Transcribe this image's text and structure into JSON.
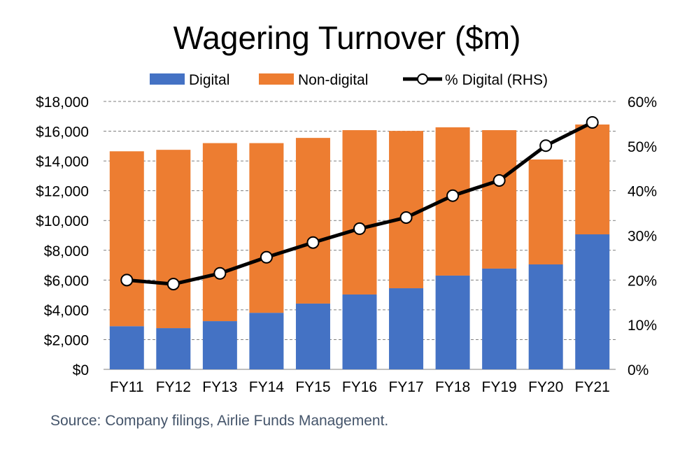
{
  "chart_data": {
    "type": "bar",
    "stacked": true,
    "title": "Wagering Turnover ($m)",
    "categories": [
      "FY11",
      "FY12",
      "FY13",
      "FY14",
      "FY15",
      "FY16",
      "FY17",
      "FY18",
      "FY19",
      "FY20",
      "FY21"
    ],
    "series": [
      {
        "name": "Digital",
        "type": "bar",
        "axis": "left",
        "color": "#4472C4",
        "values": [
          2900,
          2770,
          3240,
          3800,
          4420,
          5030,
          5450,
          6300,
          6770,
          7050,
          9070
        ]
      },
      {
        "name": "Non-digital",
        "type": "bar",
        "axis": "left",
        "color": "#ED7D31",
        "values": [
          11750,
          11980,
          11960,
          11400,
          11130,
          11040,
          10570,
          9960,
          9300,
          7050,
          7380
        ]
      },
      {
        "name": "% Digital (RHS)",
        "type": "line",
        "axis": "right",
        "color": "#000000",
        "values": [
          20.0,
          19.1,
          21.5,
          25.1,
          28.4,
          31.5,
          34.0,
          38.9,
          42.3,
          50.1,
          55.3
        ]
      }
    ],
    "yleft": {
      "lim": [
        0,
        18000
      ],
      "ticks": [
        "$0",
        "$2,000",
        "$4,000",
        "$6,000",
        "$8,000",
        "$10,000",
        "$12,000",
        "$14,000",
        "$16,000",
        "$18,000"
      ]
    },
    "yright": {
      "lim": [
        0,
        60
      ],
      "ticks": [
        "0%",
        "10%",
        "20%",
        "30%",
        "40%",
        "50%",
        "60%"
      ]
    },
    "grid": true,
    "legend": "top",
    "source": "Source: Company filings, Airlie Funds Management."
  }
}
